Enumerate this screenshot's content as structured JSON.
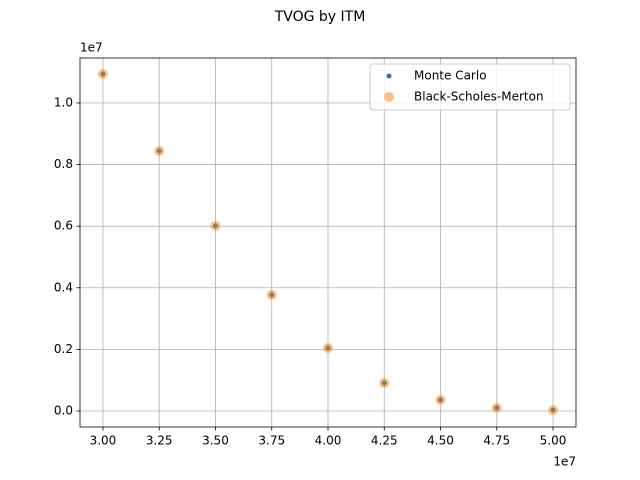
{
  "chart_data": {
    "type": "scatter",
    "title": "TVOG by ITM",
    "x": [
      30000000,
      32500000,
      35000000,
      37500000,
      40000000,
      42500000,
      45000000,
      47500000,
      50000000
    ],
    "series": [
      {
        "name": "Monte Carlo",
        "color": "#1f77b4",
        "values": [
          10940000,
          8440000,
          6010000,
          3770000,
          2040000,
          910000,
          360000,
          100000,
          30000
        ]
      },
      {
        "name": "Black-Scholes-Merton",
        "color": "#ff7f0e",
        "values": [
          10940000,
          8440000,
          6010000,
          3770000,
          2040000,
          910000,
          360000,
          100000,
          30000
        ]
      }
    ],
    "xlim": [
      28980000,
      51020000
    ],
    "ylim": [
      -520000,
      11460000
    ],
    "xticks": [
      {
        "value": 30000000,
        "label": "3.00"
      },
      {
        "value": 32500000,
        "label": "3.25"
      },
      {
        "value": 35000000,
        "label": "3.50"
      },
      {
        "value": 37500000,
        "label": "3.75"
      },
      {
        "value": 40000000,
        "label": "4.00"
      },
      {
        "value": 42500000,
        "label": "4.25"
      },
      {
        "value": 45000000,
        "label": "4.50"
      },
      {
        "value": 47500000,
        "label": "4.75"
      },
      {
        "value": 50000000,
        "label": "5.00"
      }
    ],
    "yticks": [
      {
        "value": 0,
        "label": "0.0"
      },
      {
        "value": 2000000,
        "label": "0.2"
      },
      {
        "value": 4000000,
        "label": "0.4"
      },
      {
        "value": 6000000,
        "label": "0.6"
      },
      {
        "value": 8000000,
        "label": "0.8"
      },
      {
        "value": 10000000,
        "label": "1.0"
      }
    ],
    "x_offset_label": "1e7",
    "y_offset_label": "1e7",
    "grid": true,
    "legend": "upper right"
  }
}
